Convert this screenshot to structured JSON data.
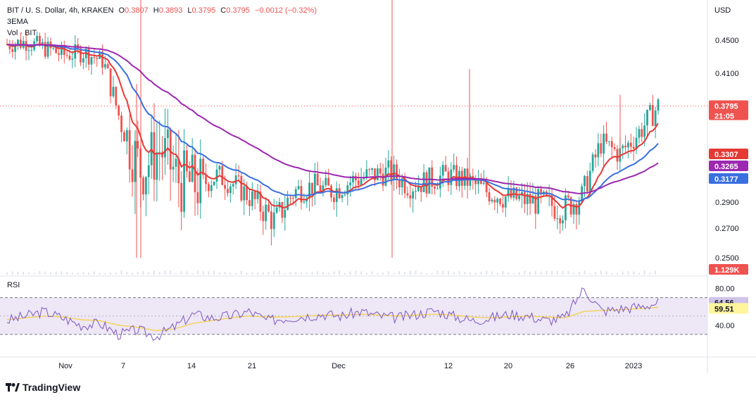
{
  "header": {
    "symbol": "BIT / U. S. Dollar, 4h, KRAKEN",
    "o_label": "O",
    "o_value": "0.3807",
    "h_label": "H",
    "h_value": "0.3893",
    "l_label": "L",
    "l_value": "0.3795",
    "c_label": "C",
    "c_value": "0.3795",
    "change": "−0.0012 (−0.32%)",
    "indicator1": "3EMA",
    "indicator2": "Vol · BIT"
  },
  "axis_currency": "USD",
  "brand": "TradingView",
  "colors": {
    "up": "#26a69a",
    "down": "#ef5350",
    "ema_fast": "#e53935",
    "ema_mid": "#3a6fe0",
    "ema_slow": "#9c27b0",
    "rsi_line": "#7e57c2",
    "rsi_ma": "#f5d04a",
    "rsi_band": "#ede7f6"
  },
  "chart_data": [
    {
      "type": "candlestick",
      "title": "BIT / U. S. Dollar, 4h, KRAKEN",
      "ylabel": "USD",
      "ylim": [
        0.24,
        0.52
      ],
      "y_ticks": [
        "0.4500",
        "0.4100",
        "0.2900",
        "0.2700",
        "0.2500"
      ],
      "x_ticks": [
        "Nov",
        "7",
        "14",
        "21",
        "Dec",
        "12",
        "20",
        "26",
        "2023"
      ],
      "last_price": "0.3795",
      "countdown": "21:05",
      "ema_values": [
        {
          "name": "EMA fast",
          "label": "0.3307"
        },
        {
          "name": "EMA mid",
          "label": "0.3265"
        },
        {
          "name": "EMA slow",
          "label": "0.3177"
        }
      ],
      "volume_label": "1.129K",
      "close_path": [
        {
          "x": "Oct 26",
          "y": 0.445
        },
        {
          "x": "Oct 29",
          "y": 0.448
        },
        {
          "x": "Nov 1",
          "y": 0.44
        },
        {
          "x": "Nov 3",
          "y": 0.432
        },
        {
          "x": "Nov 5",
          "y": 0.435
        },
        {
          "x": "Nov 7",
          "y": 0.425
        },
        {
          "x": "Nov 8",
          "y": 0.36
        },
        {
          "x": "Nov 9",
          "y": 0.32
        },
        {
          "x": "Nov 10",
          "y": 0.34
        },
        {
          "x": "Nov 12",
          "y": 0.31
        },
        {
          "x": "Nov 14",
          "y": 0.305
        },
        {
          "x": "Nov 16",
          "y": 0.315
        },
        {
          "x": "Nov 18",
          "y": 0.305
        },
        {
          "x": "Nov 20",
          "y": 0.29
        },
        {
          "x": "Nov 21",
          "y": 0.275
        },
        {
          "x": "Nov 23",
          "y": 0.3
        },
        {
          "x": "Nov 26",
          "y": 0.305
        },
        {
          "x": "Nov 29",
          "y": 0.3
        },
        {
          "x": "Dec 1",
          "y": 0.31
        },
        {
          "x": "Dec 4",
          "y": 0.315
        },
        {
          "x": "Dec 6",
          "y": 0.318
        },
        {
          "x": "Dec 8",
          "y": 0.305
        },
        {
          "x": "Dec 10",
          "y": 0.31
        },
        {
          "x": "Dec 12",
          "y": 0.315
        },
        {
          "x": "Dec 14",
          "y": 0.31
        },
        {
          "x": "Dec 16",
          "y": 0.3
        },
        {
          "x": "Dec 19",
          "y": 0.295
        },
        {
          "x": "Dec 22",
          "y": 0.292
        },
        {
          "x": "Dec 25",
          "y": 0.29
        },
        {
          "x": "Dec 27",
          "y": 0.285
        },
        {
          "x": "Dec 29",
          "y": 0.295
        },
        {
          "x": "Dec 30",
          "y": 0.345
        },
        {
          "x": "Jan 1",
          "y": 0.335
        },
        {
          "x": "Jan 2",
          "y": 0.355
        },
        {
          "x": "Jan 3",
          "y": 0.3795
        }
      ]
    },
    {
      "type": "line",
      "title": "RSI",
      "ylim": [
        20,
        85
      ],
      "y_ticks": [
        "80.00",
        "40.00"
      ],
      "band": [
        30,
        70
      ],
      "series": [
        {
          "name": "RSI",
          "value_label": "64.56",
          "values": [
            45,
            50,
            55,
            48,
            40,
            42,
            30,
            35,
            28,
            38,
            52,
            48,
            50,
            55,
            45,
            48,
            50,
            52,
            50,
            55,
            50,
            48,
            52,
            56,
            50,
            45,
            48,
            52,
            50,
            45,
            48,
            80,
            55,
            58,
            60,
            64.56
          ]
        },
        {
          "name": "RSI MA",
          "value_label": "59.51",
          "values": [
            46,
            48,
            50,
            49,
            46,
            45,
            40,
            38,
            34,
            36,
            42,
            45,
            48,
            50,
            49,
            49,
            50,
            51,
            51,
            52,
            51,
            50,
            51,
            52,
            51,
            49,
            48,
            49,
            50,
            49,
            48,
            55,
            56,
            57,
            58,
            59.51
          ]
        }
      ]
    }
  ]
}
